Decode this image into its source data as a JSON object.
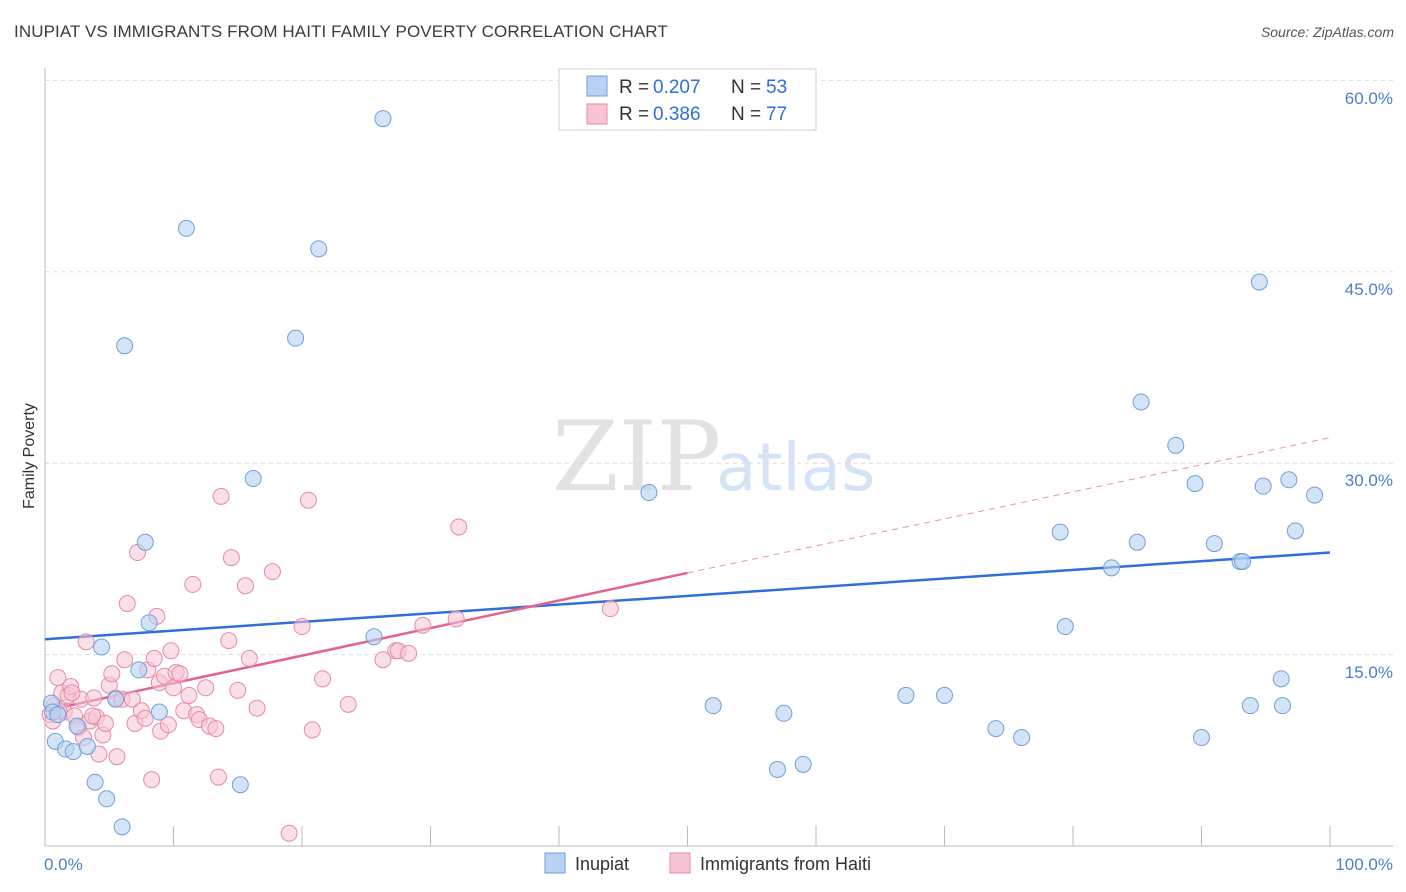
{
  "title": "INUPIAT VS IMMIGRANTS FROM HAITI FAMILY POVERTY CORRELATION CHART",
  "source": "Source: ZipAtlas.com",
  "watermark": {
    "zip": "ZIP",
    "atlas": "atlas"
  },
  "legend": {
    "rows": [
      {
        "r_label": "R = ",
        "r_value": "0.207",
        "n_label": "N = ",
        "n_value": "53"
      },
      {
        "r_label": "R = ",
        "r_value": "0.386",
        "n_label": "N = ",
        "n_value": "77"
      }
    ]
  },
  "colors": {
    "inupiat_fill": "#b8d2f2",
    "inupiat_stroke": "#6f9fdc",
    "inupiat_line": "#2f6fd6",
    "haiti_fill": "#f7c4d4",
    "haiti_stroke": "#e58aa8",
    "haiti_line": "#e0648f",
    "grid": "#dcdcdc",
    "axis": "#bbbbbb"
  },
  "chart_data": {
    "type": "scatter",
    "title": "INUPIAT VS IMMIGRANTS FROM HAITI FAMILY POVERTY CORRELATION CHART",
    "xlabel": "",
    "ylabel": "Family Poverty",
    "xlim": [
      0,
      100
    ],
    "ylim": [
      0,
      60
    ],
    "x_tick_labels": [
      "0.0%",
      "100.0%"
    ],
    "y_tick_values": [
      15,
      30,
      45,
      60
    ],
    "y_tick_labels": [
      "15.0%",
      "30.0%",
      "45.0%",
      "60.0%"
    ],
    "series": [
      {
        "name": "Inupiat",
        "r": 0.207,
        "n": 53,
        "trend": {
          "x": [
            0,
            100
          ],
          "y": [
            16.2,
            23.0
          ]
        },
        "points": [
          [
            0.5,
            11.2
          ],
          [
            0.6,
            10.5
          ],
          [
            0.8,
            8.2
          ],
          [
            1.0,
            10.3
          ],
          [
            1.6,
            7.6
          ],
          [
            2.2,
            7.4
          ],
          [
            2.5,
            9.4
          ],
          [
            3.3,
            7.8
          ],
          [
            3.9,
            5.0
          ],
          [
            4.4,
            15.6
          ],
          [
            4.8,
            3.7
          ],
          [
            5.5,
            11.5
          ],
          [
            6.0,
            1.5
          ],
          [
            6.2,
            39.2
          ],
          [
            7.3,
            13.8
          ],
          [
            7.8,
            23.8
          ],
          [
            8.1,
            17.5
          ],
          [
            8.9,
            10.5
          ],
          [
            11.0,
            48.4
          ],
          [
            15.2,
            4.8
          ],
          [
            16.2,
            28.8
          ],
          [
            19.5,
            39.8
          ],
          [
            21.3,
            46.8
          ],
          [
            25.6,
            16.4
          ],
          [
            26.3,
            57.0
          ],
          [
            47.0,
            27.7
          ],
          [
            52.0,
            11.0
          ],
          [
            57.0,
            6.0
          ],
          [
            57.5,
            10.4
          ],
          [
            59.0,
            6.4
          ],
          [
            67.0,
            11.8
          ],
          [
            70.0,
            11.8
          ],
          [
            74.0,
            9.2
          ],
          [
            76.0,
            8.5
          ],
          [
            79.0,
            24.6
          ],
          [
            79.4,
            17.2
          ],
          [
            83.0,
            21.8
          ],
          [
            85.0,
            23.8
          ],
          [
            85.3,
            34.8
          ],
          [
            88.0,
            31.4
          ],
          [
            89.5,
            28.4
          ],
          [
            90.0,
            8.5
          ],
          [
            91.0,
            23.7
          ],
          [
            93.0,
            22.3
          ],
          [
            93.2,
            22.3
          ],
          [
            93.8,
            11.0
          ],
          [
            94.5,
            44.2
          ],
          [
            94.8,
            28.2
          ],
          [
            96.2,
            13.1
          ],
          [
            96.3,
            11.0
          ],
          [
            96.8,
            28.7
          ],
          [
            97.3,
            24.7
          ],
          [
            98.8,
            27.5
          ]
        ]
      },
      {
        "name": "Immigrants from Haiti",
        "r": 0.386,
        "n": 77,
        "trend": {
          "x": [
            0,
            50
          ],
          "y": [
            10.6,
            21.4
          ]
        },
        "trend_dashed": {
          "x": [
            50,
            100
          ],
          "y": [
            21.4,
            32.0
          ]
        },
        "points": [
          [
            0.4,
            10.3
          ],
          [
            0.6,
            9.8
          ],
          [
            0.7,
            11.0
          ],
          [
            1.0,
            13.2
          ],
          [
            1.3,
            12.0
          ],
          [
            1.5,
            10.5
          ],
          [
            1.8,
            11.8
          ],
          [
            2.0,
            12.5
          ],
          [
            2.3,
            10.2
          ],
          [
            2.6,
            9.3
          ],
          [
            2.8,
            11.5
          ],
          [
            3.0,
            8.5
          ],
          [
            3.2,
            16.0
          ],
          [
            3.5,
            9.8
          ],
          [
            3.8,
            11.6
          ],
          [
            4.0,
            10.1
          ],
          [
            4.2,
            7.2
          ],
          [
            4.5,
            8.7
          ],
          [
            4.7,
            9.6
          ],
          [
            5.0,
            12.6
          ],
          [
            5.2,
            13.5
          ],
          [
            5.5,
            11.6
          ],
          [
            5.6,
            7.0
          ],
          [
            6.0,
            11.5
          ],
          [
            6.2,
            14.6
          ],
          [
            6.4,
            19.0
          ],
          [
            6.8,
            11.5
          ],
          [
            7.0,
            9.6
          ],
          [
            7.2,
            23.0
          ],
          [
            7.5,
            10.6
          ],
          [
            7.8,
            10.0
          ],
          [
            8.0,
            13.8
          ],
          [
            8.3,
            5.2
          ],
          [
            8.5,
            14.7
          ],
          [
            8.7,
            18.0
          ],
          [
            8.9,
            12.8
          ],
          [
            9.0,
            9.0
          ],
          [
            9.3,
            13.3
          ],
          [
            9.6,
            9.5
          ],
          [
            9.8,
            15.3
          ],
          [
            10.0,
            12.4
          ],
          [
            10.2,
            13.6
          ],
          [
            10.5,
            13.5
          ],
          [
            10.8,
            10.6
          ],
          [
            11.2,
            11.8
          ],
          [
            11.5,
            20.5
          ],
          [
            11.8,
            10.3
          ],
          [
            12.0,
            9.9
          ],
          [
            12.5,
            12.4
          ],
          [
            12.8,
            9.4
          ],
          [
            13.3,
            9.2
          ],
          [
            13.5,
            5.4
          ],
          [
            13.7,
            27.4
          ],
          [
            14.3,
            16.1
          ],
          [
            14.5,
            22.6
          ],
          [
            15.0,
            12.2
          ],
          [
            15.6,
            20.4
          ],
          [
            15.9,
            14.7
          ],
          [
            16.5,
            10.8
          ],
          [
            17.7,
            21.5
          ],
          [
            19.0,
            1.0
          ],
          [
            20.0,
            17.2
          ],
          [
            20.5,
            27.1
          ],
          [
            20.8,
            9.1
          ],
          [
            21.6,
            13.1
          ],
          [
            23.6,
            11.1
          ],
          [
            26.3,
            14.6
          ],
          [
            27.3,
            15.3
          ],
          [
            27.5,
            15.3
          ],
          [
            28.3,
            15.1
          ],
          [
            29.4,
            17.3
          ],
          [
            32.0,
            17.8
          ],
          [
            32.2,
            25.0
          ],
          [
            44.0,
            18.6
          ],
          [
            1.1,
            10.6
          ],
          [
            2.1,
            12.0
          ],
          [
            3.7,
            10.2
          ]
        ]
      }
    ],
    "legend_position": "top-center",
    "grid": true
  },
  "bottom_legend": {
    "items": [
      "Inupiat",
      "Immigrants from Haiti"
    ]
  }
}
